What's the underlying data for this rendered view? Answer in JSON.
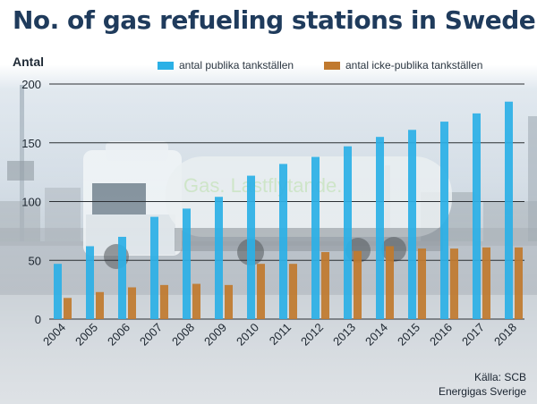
{
  "title": "No. of gas refueling stations in Sweden",
  "colors": {
    "public": "#2bb0e6",
    "nonpublic": "#c0792e",
    "title": "#1f3b5c"
  },
  "source": {
    "line1": "Källa: SCB",
    "line2": "Energigas Sverige"
  },
  "chart_data": {
    "type": "bar",
    "ylabel": "Antal",
    "xlabel": "",
    "ylim": [
      0,
      200
    ],
    "yticks": [
      0,
      50,
      100,
      150,
      200
    ],
    "grid": true,
    "legend_position": "top",
    "categories": [
      "2004",
      "2005",
      "2006",
      "2007",
      "2008",
      "2009",
      "2010",
      "2011",
      "2012",
      "2013",
      "2014",
      "2015",
      "2016",
      "2017",
      "2018"
    ],
    "series": [
      {
        "name": "antal publika tankställen",
        "values": [
          47,
          62,
          70,
          87,
          94,
          104,
          122,
          132,
          138,
          147,
          155,
          161,
          168,
          175,
          185
        ]
      },
      {
        "name": "antal icke-publika tankställen",
        "values": [
          18,
          23,
          27,
          29,
          30,
          29,
          47,
          47,
          57,
          58,
          62,
          60,
          60,
          61,
          61
        ]
      }
    ]
  }
}
